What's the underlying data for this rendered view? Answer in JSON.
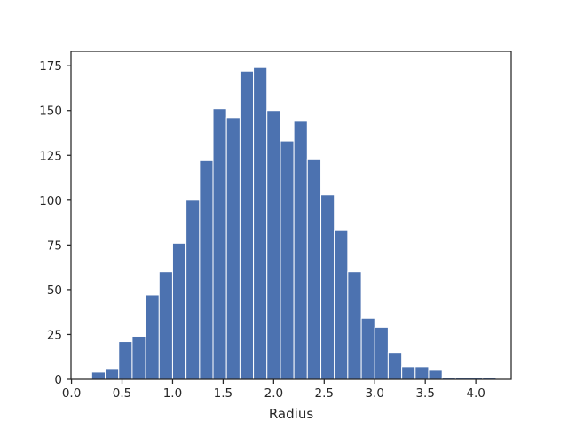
{
  "chart_data": {
    "type": "bar",
    "title": "",
    "xlabel": "Radius",
    "ylabel": "",
    "xlim": [
      -0.005,
      4.35
    ],
    "ylim": [
      0,
      183
    ],
    "grid": false,
    "x_ticks": [
      0.0,
      0.5,
      1.0,
      1.5,
      2.0,
      2.5,
      3.0,
      3.5,
      4.0
    ],
    "x_tick_labels": [
      "0.0",
      "0.5",
      "1.0",
      "1.5",
      "2.0",
      "2.5",
      "3.0",
      "3.5",
      "4.0"
    ],
    "y_ticks": [
      0,
      25,
      50,
      75,
      100,
      125,
      150,
      175
    ],
    "y_tick_labels": [
      "0",
      "25",
      "50",
      "75",
      "100",
      "125",
      "150",
      "175"
    ],
    "bar_color": "#4c72b0",
    "bin_edges": [
      0.2,
      0.333,
      0.467,
      0.6,
      0.733,
      0.867,
      1.0,
      1.133,
      1.267,
      1.4,
      1.533,
      1.667,
      1.8,
      1.933,
      2.067,
      2.2,
      2.333,
      2.467,
      2.6,
      2.733,
      2.867,
      3.0,
      3.133,
      3.267,
      3.4,
      3.533,
      3.667,
      3.8,
      3.933,
      4.067,
      4.2
    ],
    "values": [
      4,
      6,
      21,
      24,
      47,
      60,
      76,
      100,
      122,
      151,
      146,
      172,
      174,
      150,
      133,
      144,
      123,
      103,
      83,
      60,
      34,
      29,
      15,
      7,
      7,
      5,
      1,
      1,
      1,
      1
    ]
  }
}
